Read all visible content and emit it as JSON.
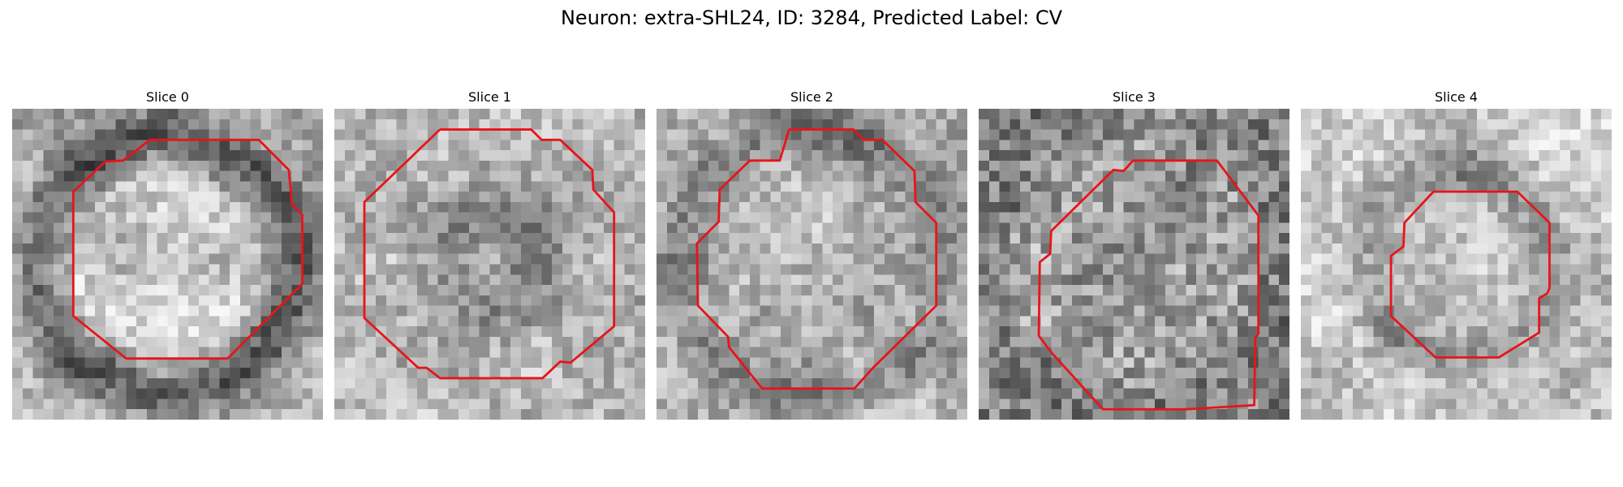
{
  "figure": {
    "title": "Neuron: extra-SHL24, ID: 3284, Predicted Label: CV"
  },
  "colors": {
    "contour": "#e8141a",
    "image_colormap": "grayscale"
  },
  "panels": [
    {
      "title": "Slice 0"
    },
    {
      "title": "Slice 1"
    },
    {
      "title": "Slice 2"
    },
    {
      "title": "Slice 3"
    },
    {
      "title": "Slice 4"
    }
  ]
}
